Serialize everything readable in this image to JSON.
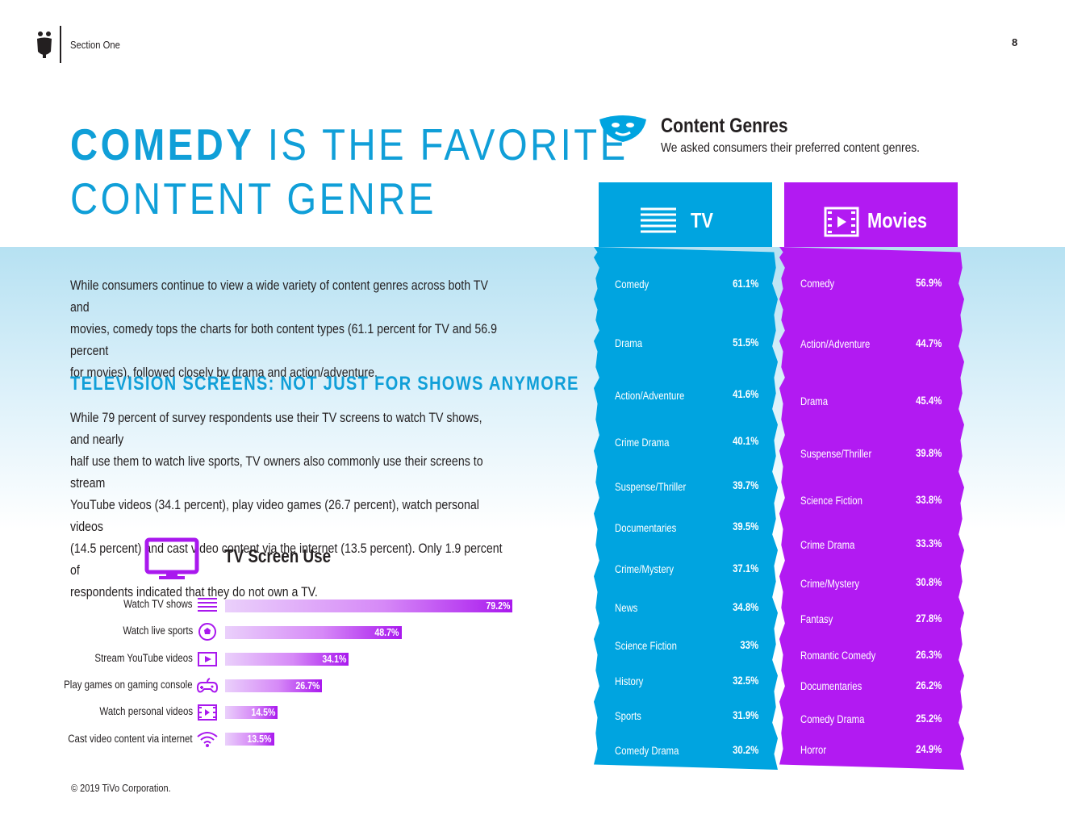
{
  "header": {
    "section_label": "Section One",
    "page_number": "8"
  },
  "title": {
    "highlight": "COMEDY",
    "line1_rest": " IS THE FAVORITE",
    "line2": "CONTENT GENRE"
  },
  "intro": {
    "line1": "While consumers continue to view a wide variety of content genres across both TV and",
    "line2": "movies, comedy tops the charts for both content types (61.1 percent for TV and 56.9 percent",
    "line3": "for movies), followed closely by drama and action/adventure."
  },
  "subheading": "TELEVISION SCREENS: NOT JUST FOR SHOWS ANYMORE",
  "paragraph2": {
    "line1": "While 79 percent of survey respondents use their TV screens to watch TV shows, and nearly",
    "line2": "half use them to watch live sports, TV owners also commonly use their screens to stream",
    "line3": "YouTube videos (34.1 percent), play video games (26.7 percent), watch personal videos",
    "line4": "(14.5 percent) and cast video content via the internet (13.5 percent). Only 1.9 percent of",
    "line5": "respondents indicated that they do not own a TV."
  },
  "tv_screen_use": {
    "title": "TV Screen Use",
    "items": [
      {
        "label": "Watch TV shows",
        "value": 79.2,
        "display": "79.2%",
        "icon": "tv-shows-icon"
      },
      {
        "label": "Watch live sports",
        "value": 48.7,
        "display": "48.7%",
        "icon": "soccer-ball-icon"
      },
      {
        "label": "Stream YouTube videos",
        "value": 34.1,
        "display": "34.1%",
        "icon": "play-button-icon"
      },
      {
        "label": "Play games on gaming console",
        "value": 26.7,
        "display": "26.7%",
        "icon": "gamepad-icon"
      },
      {
        "label": "Watch personal videos",
        "value": 14.5,
        "display": "14.5%",
        "icon": "film-icon"
      },
      {
        "label": "Cast video content via internet",
        "value": 13.5,
        "display": "13.5%",
        "icon": "wifi-icon"
      }
    ]
  },
  "content_genres": {
    "title": "Content Genres",
    "subtitle": "We asked consumers their preferred content genres.",
    "tv": {
      "label": "TV",
      "items": [
        {
          "name": "Comedy",
          "value": "61.1%"
        },
        {
          "name": "Drama",
          "value": "51.5%"
        },
        {
          "name": "Action/Adventure",
          "value": "41.6%"
        },
        {
          "name": "Crime Drama",
          "value": "40.1%"
        },
        {
          "name": "Suspense/Thriller",
          "value": "39.7%"
        },
        {
          "name": "Documentaries",
          "value": "39.5%"
        },
        {
          "name": "Crime/Mystery",
          "value": "37.1%"
        },
        {
          "name": "News",
          "value": "34.8%"
        },
        {
          "name": "Science Fiction",
          "value": "33%"
        },
        {
          "name": "History",
          "value": "32.5%"
        },
        {
          "name": "Sports",
          "value": "31.9%"
        },
        {
          "name": "Comedy Drama",
          "value": "30.2%"
        }
      ]
    },
    "movies": {
      "label": "Movies",
      "items": [
        {
          "name": "Comedy",
          "value": "56.9%"
        },
        {
          "name": "Action/Adventure",
          "value": "44.7%"
        },
        {
          "name": "Drama",
          "value": "45.4%"
        },
        {
          "name": "Suspense/Thriller",
          "value": "39.8%"
        },
        {
          "name": "Science Fiction",
          "value": "33.8%"
        },
        {
          "name": "Crime Drama",
          "value": "33.3%"
        },
        {
          "name": "Crime/Mystery",
          "value": "30.8%"
        },
        {
          "name": "Fantasy",
          "value": "27.8%"
        },
        {
          "name": "Romantic Comedy",
          "value": "26.3%"
        },
        {
          "name": "Documentaries",
          "value": "26.2%"
        },
        {
          "name": "Comedy Drama",
          "value": "25.2%"
        },
        {
          "name": "Horror",
          "value": "24.9%"
        }
      ]
    }
  },
  "footer": {
    "copyright": "© 2019 TiVo Corporation."
  },
  "colors": {
    "accent_blue": "#109fd8",
    "tv_column": "#00a4e0",
    "movies_column": "#b21af2",
    "bar_purple": "#a918ee"
  }
}
